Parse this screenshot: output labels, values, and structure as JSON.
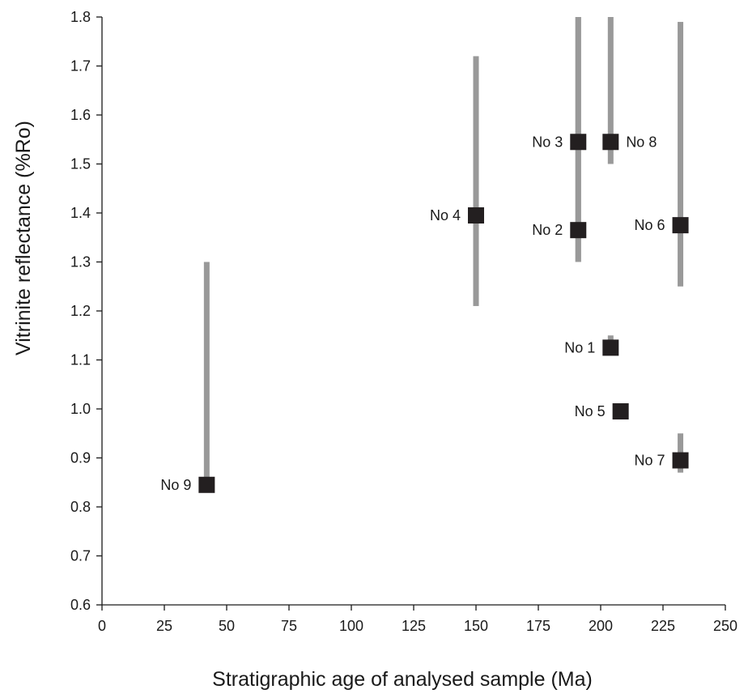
{
  "chart_data": {
    "type": "scatter",
    "title": "",
    "xlabel": "Stratigraphic age of analysed sample (Ma)",
    "ylabel": "Vitrinite reflectance (%Ro)",
    "xlim": [
      0,
      250
    ],
    "ylim": [
      0.6,
      1.8
    ],
    "xticks": [
      "0",
      "25",
      "50",
      "75",
      "100",
      "125",
      "150",
      "175",
      "200",
      "225",
      "250"
    ],
    "yticks": [
      "0.6",
      "0.7",
      "0.8",
      "0.9",
      "1.0",
      "1.1",
      "1.2",
      "1.3",
      "1.4",
      "1.5",
      "1.6",
      "1.7",
      "1.8"
    ],
    "grid": false,
    "marker_color": "#231f20",
    "range_color": "#999999",
    "points": [
      {
        "label": "No 1",
        "x": 204,
        "y": 1.125,
        "range": [
          1.11,
          1.15
        ],
        "label_side": "left"
      },
      {
        "label": "No 2",
        "x": 191,
        "y": 1.365,
        "range": [
          1.3,
          1.8
        ],
        "label_side": "left"
      },
      {
        "label": "No 3",
        "x": 191,
        "y": 1.545,
        "range": [
          1.3,
          1.8
        ],
        "label_side": "left"
      },
      {
        "label": "No 4",
        "x": 150,
        "y": 1.395,
        "range": [
          1.21,
          1.72
        ],
        "label_side": "left"
      },
      {
        "label": "No 5",
        "x": 208,
        "y": 0.995,
        "range": null,
        "label_side": "left"
      },
      {
        "label": "No 6",
        "x": 232,
        "y": 1.375,
        "range": [
          1.25,
          1.79
        ],
        "label_side": "left"
      },
      {
        "label": "No 7",
        "x": 232,
        "y": 0.895,
        "range": [
          0.87,
          0.95
        ],
        "label_side": "left"
      },
      {
        "label": "No 8",
        "x": 204,
        "y": 1.545,
        "range": [
          1.5,
          1.8
        ],
        "label_side": "right"
      },
      {
        "label": "No 9",
        "x": 42,
        "y": 0.845,
        "range": [
          0.85,
          1.3
        ],
        "label_side": "left"
      }
    ]
  }
}
